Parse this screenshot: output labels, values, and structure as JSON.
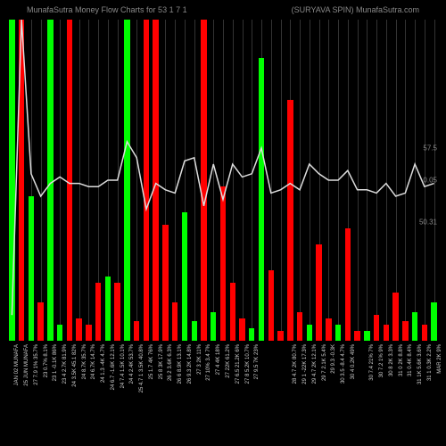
{
  "title_left": "MunafaSutra   Money Flow   Charts for 53  1 7 1",
  "title_right": "(SURYAVA SPIN) MunafaSutra.com",
  "chart": {
    "type": "bar-with-line",
    "background_color": "#000000",
    "grid_color": "#333333",
    "line_color": "#dddddd",
    "up_color": "#00ff00",
    "down_color": "#ff0000",
    "bar_width": 0.6,
    "ylim": [
      0,
      100
    ],
    "yticks": [
      {
        "pos": 50,
        "label": "0.05"
      },
      {
        "pos": 60,
        "label": "57.5"
      },
      {
        "pos": 37,
        "label": "50.31"
      }
    ],
    "bars": [
      {
        "h": 100,
        "c": "up",
        "label": "JAN 02 MUNAFA"
      },
      {
        "h": 100,
        "c": "down",
        "label": "25 JUN MUNAFA"
      },
      {
        "h": 45,
        "c": "up",
        "label": "27 7.9 1% 35.7%"
      },
      {
        "h": 12,
        "c": "down",
        "label": "23 0.7% 8.1%"
      },
      {
        "h": 100,
        "c": "up",
        "label": "23 1 -0.1K 86%"
      },
      {
        "h": 5,
        "c": "up",
        "label": "23 4 2.7K 81.9%"
      },
      {
        "h": 100,
        "c": "down",
        "label": "24 3.5K 45.1 82%"
      },
      {
        "h": 7,
        "c": "down",
        "label": "24 8.7K 35.7%"
      },
      {
        "h": 5,
        "c": "down",
        "label": "24 6.7K 14.7%"
      },
      {
        "h": 18,
        "c": "down",
        "label": "24 1.3 -4K 4.7%"
      },
      {
        "h": 20,
        "c": "up",
        "label": "24 6.7 -1.6K 12.1%"
      },
      {
        "h": 18,
        "c": "down",
        "label": "24 7.4 1.5K 10.1%"
      },
      {
        "h": 100,
        "c": "up",
        "label": "24 4 2.4K 53.7%"
      },
      {
        "h": 6,
        "c": "down",
        "label": "25 4.7 1 3.5K 40.8%"
      },
      {
        "h": 100,
        "c": "down",
        "label": "25 1.7 4K 76%"
      },
      {
        "h": 100,
        "c": "down",
        "label": "25 8 3K 17.9%"
      },
      {
        "h": 36,
        "c": "down",
        "label": "26 2 3.6K 6.3%"
      },
      {
        "h": 12,
        "c": "down",
        "label": "26 6 8.9K 13.1%"
      },
      {
        "h": 40,
        "c": "up",
        "label": "26 9.3 2K 14.8%"
      },
      {
        "h": 6,
        "c": "up",
        "label": "27 3 2K 11%"
      },
      {
        "h": 100,
        "c": "down",
        "label": "27 10% 3.4 7%"
      },
      {
        "h": 9,
        "c": "up",
        "label": "27 4 4K 18%"
      },
      {
        "h": 48,
        "c": "down",
        "label": "27 22K 61.2%"
      },
      {
        "h": 18,
        "c": "down",
        "label": "27 6.5 21.2K 6%"
      },
      {
        "h": 7,
        "c": "down",
        "label": "27 8 5.2K 10.7%"
      },
      {
        "h": 4,
        "c": "up",
        "label": "27 9.5 7K 23%"
      },
      {
        "h": 88,
        "c": "up",
        "label": ""
      },
      {
        "h": 22,
        "c": "down",
        "label": ""
      },
      {
        "h": 3,
        "c": "down",
        "label": ""
      },
      {
        "h": 75,
        "c": "down",
        "label": "28 4.7 2K 80.7%"
      },
      {
        "h": 9,
        "c": "down",
        "label": "29 1 -22K 17.3%"
      },
      {
        "h": 5,
        "c": "up",
        "label": "29 4.7 2K 12.1%"
      },
      {
        "h": 30,
        "c": "down",
        "label": "29 7 2.1K 5.4%"
      },
      {
        "h": 7,
        "c": "down",
        "label": "29 9.3 -0.3K"
      },
      {
        "h": 5,
        "c": "up",
        "label": "30 3.5 -8.4 4.7%"
      },
      {
        "h": 35,
        "c": "down",
        "label": "30 4 0.2K 49%"
      },
      {
        "h": 3,
        "c": "down",
        "label": ""
      },
      {
        "h": 3,
        "c": "up",
        "label": "30 7.4 21% 7%"
      },
      {
        "h": 8,
        "c": "down",
        "label": "30 7.2 1% 9%"
      },
      {
        "h": 5,
        "c": "down",
        "label": "30 8 2K 3.3%"
      },
      {
        "h": 15,
        "c": "down",
        "label": "31 0 2K 8.8%"
      },
      {
        "h": 6,
        "c": "down",
        "label": "31 0.4K 8.4%"
      },
      {
        "h": 9,
        "c": "up",
        "label": "31 1K 5.6K 3.6%"
      },
      {
        "h": 5,
        "c": "down",
        "label": "31 1 0.3K 2.2%"
      },
      {
        "h": 12,
        "c": "up",
        "label": "MAR 2K 9%"
      }
    ],
    "line": [
      8,
      100,
      52,
      45,
      49,
      51,
      49,
      49,
      48,
      48,
      50,
      50,
      62,
      57,
      41,
      49,
      47,
      46,
      56,
      57,
      42,
      55,
      44,
      55,
      51,
      52,
      60,
      46,
      47,
      49,
      47,
      55,
      52,
      50,
      50,
      53,
      47,
      47,
      46,
      49,
      45,
      46,
      55,
      48,
      49
    ]
  }
}
